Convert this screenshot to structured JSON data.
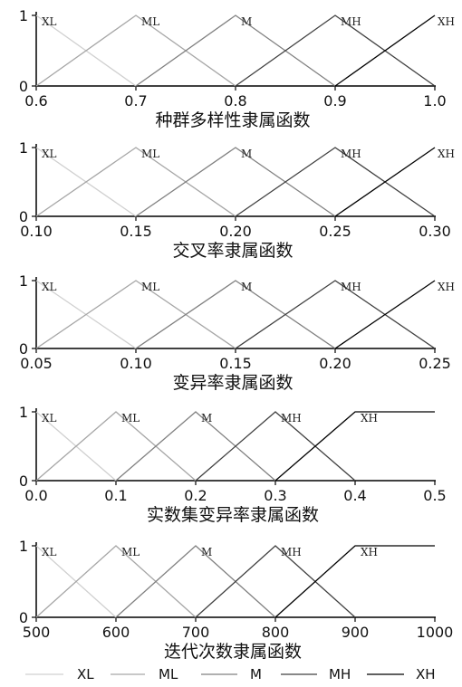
{
  "chart_data": [
    {
      "type": "line",
      "xlabel": "种群多样性隶属函数",
      "xlim": [
        0.6,
        1.0
      ],
      "ylim": [
        0,
        1
      ],
      "xticks": [
        "0.6",
        "0.7",
        "0.8",
        "0.9",
        "1.0"
      ],
      "yticks": [
        "0",
        "1"
      ],
      "series": [
        {
          "name": "XL",
          "x": [
            0.6,
            0.7
          ],
          "y": [
            1,
            0
          ]
        },
        {
          "name": "ML",
          "x": [
            0.6,
            0.7,
            0.8
          ],
          "y": [
            0,
            1,
            0
          ]
        },
        {
          "name": "M",
          "x": [
            0.7,
            0.8,
            0.9
          ],
          "y": [
            0,
            1,
            0
          ]
        },
        {
          "name": "MH",
          "x": [
            0.8,
            0.9,
            1.0
          ],
          "y": [
            0,
            1,
            0
          ]
        },
        {
          "name": "XH",
          "x": [
            0.9,
            1.0
          ],
          "y": [
            0,
            1
          ]
        }
      ]
    },
    {
      "type": "line",
      "xlabel": "交叉率隶属函数",
      "xlim": [
        0.1,
        0.3
      ],
      "ylim": [
        0,
        1
      ],
      "xticks": [
        "0.10",
        "0.15",
        "0.20",
        "0.25",
        "0.30"
      ],
      "yticks": [
        "0",
        "1"
      ],
      "series": [
        {
          "name": "XL",
          "x": [
            0.1,
            0.15
          ],
          "y": [
            1,
            0
          ]
        },
        {
          "name": "ML",
          "x": [
            0.1,
            0.15,
            0.2
          ],
          "y": [
            0,
            1,
            0
          ]
        },
        {
          "name": "M",
          "x": [
            0.15,
            0.2,
            0.25
          ],
          "y": [
            0,
            1,
            0
          ]
        },
        {
          "name": "MH",
          "x": [
            0.2,
            0.25,
            0.3
          ],
          "y": [
            0,
            1,
            0
          ]
        },
        {
          "name": "XH",
          "x": [
            0.25,
            0.3
          ],
          "y": [
            0,
            1
          ]
        }
      ]
    },
    {
      "type": "line",
      "xlabel": "变异率隶属函数",
      "xlim": [
        0.05,
        0.25
      ],
      "ylim": [
        0,
        1
      ],
      "xticks": [
        "0.05",
        "0.10",
        "0.15",
        "0.20",
        "0.25"
      ],
      "yticks": [
        "0",
        "1"
      ],
      "series": [
        {
          "name": "XL",
          "x": [
            0.05,
            0.1
          ],
          "y": [
            1,
            0
          ]
        },
        {
          "name": "ML",
          "x": [
            0.05,
            0.1,
            0.15
          ],
          "y": [
            0,
            1,
            0
          ]
        },
        {
          "name": "M",
          "x": [
            0.1,
            0.15,
            0.2
          ],
          "y": [
            0,
            1,
            0
          ]
        },
        {
          "name": "MH",
          "x": [
            0.15,
            0.2,
            0.25
          ],
          "y": [
            0,
            1,
            0
          ]
        },
        {
          "name": "XH",
          "x": [
            0.2,
            0.25
          ],
          "y": [
            0,
            1
          ]
        }
      ]
    },
    {
      "type": "line",
      "xlabel": "实数集变异率隶属函数",
      "xlim": [
        0.0,
        0.5
      ],
      "ylim": [
        0,
        1
      ],
      "xticks": [
        "0.0",
        "0.1",
        "0.2",
        "0.3",
        "0.4",
        "0.5"
      ],
      "yticks": [
        "0",
        "1"
      ],
      "series": [
        {
          "name": "XL",
          "x": [
            0.0,
            0.1
          ],
          "y": [
            1,
            0
          ]
        },
        {
          "name": "ML",
          "x": [
            0.0,
            0.1,
            0.2
          ],
          "y": [
            0,
            1,
            0
          ]
        },
        {
          "name": "M",
          "x": [
            0.1,
            0.2,
            0.3
          ],
          "y": [
            0,
            1,
            0
          ]
        },
        {
          "name": "MH",
          "x": [
            0.2,
            0.3,
            0.4
          ],
          "y": [
            0,
            1,
            0
          ]
        },
        {
          "name": "XH",
          "x": [
            0.3,
            0.4,
            0.5
          ],
          "y": [
            0,
            1,
            1
          ]
        }
      ]
    },
    {
      "type": "line",
      "xlabel": "迭代次数隶属函数",
      "xlim": [
        500,
        1000
      ],
      "ylim": [
        0,
        1
      ],
      "xticks": [
        "500",
        "600",
        "700",
        "800",
        "900",
        "1000"
      ],
      "yticks": [
        "0",
        "1"
      ],
      "series": [
        {
          "name": "XL",
          "x": [
            500,
            600
          ],
          "y": [
            1,
            0
          ]
        },
        {
          "name": "ML",
          "x": [
            500,
            600,
            700
          ],
          "y": [
            0,
            1,
            0
          ]
        },
        {
          "name": "M",
          "x": [
            600,
            700,
            800
          ],
          "y": [
            0,
            1,
            0
          ]
        },
        {
          "name": "MH",
          "x": [
            700,
            800,
            900
          ],
          "y": [
            0,
            1,
            0
          ]
        },
        {
          "name": "XH",
          "x": [
            800,
            900,
            1000
          ],
          "y": [
            0,
            1,
            1
          ]
        }
      ]
    }
  ],
  "legend": [
    "XL",
    "ML",
    "M",
    "MH",
    "XH"
  ],
  "series_colors": [
    "#d0d0d0",
    "#a6a6a6",
    "#808080",
    "#404040",
    "#000000"
  ]
}
